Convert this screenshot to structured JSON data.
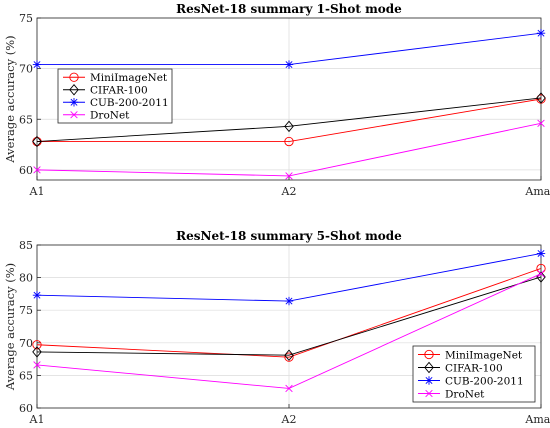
{
  "chart_data": [
    {
      "type": "line",
      "title": "ResNet-18 summary 1-Shot mode",
      "ylabel": "Average accuracy (%)",
      "xlabel": "",
      "categories": [
        "A1",
        "A2",
        "Amax"
      ],
      "ylim": [
        59,
        75
      ],
      "yticks": [
        60,
        65,
        70,
        75
      ],
      "grid": true,
      "legend_position": "top-left",
      "series": [
        {
          "name": "MiniImageNet",
          "color": "#ff0000",
          "marker": "circle",
          "values": [
            62.8,
            62.8,
            67.0
          ]
        },
        {
          "name": "CIFAR-100",
          "color": "#000000",
          "marker": "diamond",
          "values": [
            62.8,
            64.3,
            67.1
          ]
        },
        {
          "name": "CUB-200-2011",
          "color": "#0000ff",
          "marker": "asterisk",
          "values": [
            70.4,
            70.4,
            73.5
          ]
        },
        {
          "name": "DroNet",
          "color": "#ff00ff",
          "marker": "x",
          "values": [
            60.0,
            59.4,
            64.6
          ]
        }
      ]
    },
    {
      "type": "line",
      "title": "ResNet-18 summary 5-Shot mode",
      "ylabel": "Average accuracy (%)",
      "xlabel": "",
      "categories": [
        "A1",
        "A2",
        "Amax"
      ],
      "ylim": [
        60,
        85
      ],
      "yticks": [
        60,
        65,
        70,
        75,
        80,
        85
      ],
      "grid": true,
      "legend_position": "bottom-right",
      "series": [
        {
          "name": "MiniImageNet",
          "color": "#ff0000",
          "marker": "circle",
          "values": [
            69.7,
            67.8,
            81.4
          ]
        },
        {
          "name": "CIFAR-100",
          "color": "#000000",
          "marker": "diamond",
          "values": [
            68.6,
            68.1,
            80.1
          ]
        },
        {
          "name": "CUB-200-2011",
          "color": "#0000ff",
          "marker": "asterisk",
          "values": [
            77.3,
            76.4,
            83.7
          ]
        },
        {
          "name": "DroNet",
          "color": "#ff00ff",
          "marker": "x",
          "values": [
            66.6,
            63.0,
            80.6
          ]
        }
      ]
    }
  ]
}
